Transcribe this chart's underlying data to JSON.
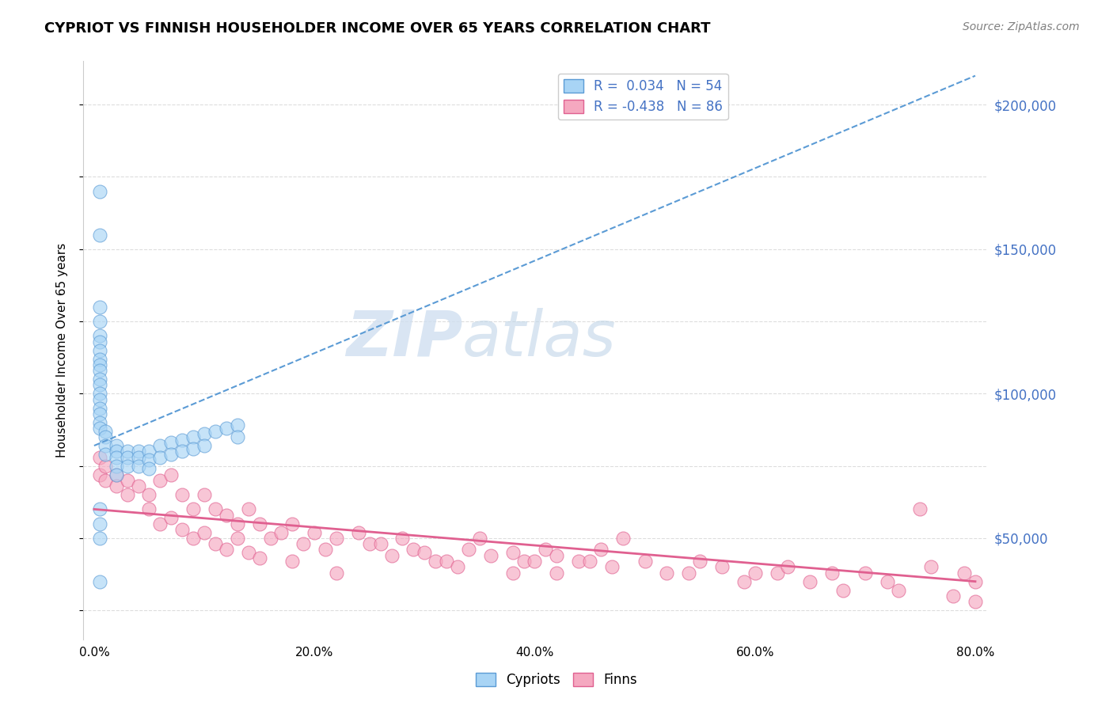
{
  "title": "CYPRIOT VS FINNISH HOUSEHOLDER INCOME OVER 65 YEARS CORRELATION CHART",
  "source": "Source: ZipAtlas.com",
  "ylabel": "Householder Income Over 65 years",
  "xlabel_ticks": [
    "0.0%",
    "20.0%",
    "40.0%",
    "60.0%",
    "80.0%"
  ],
  "xlabel_values": [
    0.0,
    0.2,
    0.4,
    0.6,
    0.8
  ],
  "ytick_labels": [
    "$50,000",
    "$100,000",
    "$150,000",
    "$200,000"
  ],
  "ytick_values": [
    50000,
    100000,
    150000,
    200000
  ],
  "ylim": [
    15000,
    215000
  ],
  "xlim": [
    -0.01,
    0.81
  ],
  "cypriot_R": 0.034,
  "cypriot_N": 54,
  "finn_R": -0.438,
  "finn_N": 86,
  "cypriot_color": "#A8D4F5",
  "finn_color": "#F5A8C0",
  "cypriot_edge_color": "#5B9BD5",
  "finn_edge_color": "#E06090",
  "cypriot_line_color": "#5B9BD5",
  "finn_line_color": "#E06090",
  "background_color": "#FFFFFF",
  "grid_color": "#DDDDDD",
  "watermark_zip": "ZIP",
  "watermark_atlas": "atlas",
  "legend_label_color": "#4472C4",
  "cypriot_x": [
    0.005,
    0.005,
    0.005,
    0.005,
    0.005,
    0.005,
    0.005,
    0.005,
    0.005,
    0.005,
    0.005,
    0.005,
    0.005,
    0.005,
    0.005,
    0.005,
    0.005,
    0.005,
    0.01,
    0.01,
    0.01,
    0.01,
    0.02,
    0.02,
    0.02,
    0.02,
    0.02,
    0.03,
    0.03,
    0.03,
    0.04,
    0.04,
    0.04,
    0.05,
    0.05,
    0.05,
    0.06,
    0.06,
    0.07,
    0.07,
    0.08,
    0.08,
    0.09,
    0.09,
    0.1,
    0.1,
    0.11,
    0.12,
    0.13,
    0.13,
    0.005,
    0.005,
    0.005,
    0.005
  ],
  "cypriot_y": [
    170000,
    155000,
    130000,
    125000,
    120000,
    118000,
    115000,
    112000,
    110000,
    108000,
    105000,
    103000,
    100000,
    98000,
    95000,
    93000,
    90000,
    88000,
    87000,
    85000,
    82000,
    79000,
    82000,
    80000,
    78000,
    75000,
    72000,
    80000,
    78000,
    75000,
    80000,
    78000,
    75000,
    80000,
    77000,
    74000,
    82000,
    78000,
    83000,
    79000,
    84000,
    80000,
    85000,
    81000,
    86000,
    82000,
    87000,
    88000,
    89000,
    85000,
    60000,
    55000,
    50000,
    35000
  ],
  "finn_x": [
    0.005,
    0.005,
    0.01,
    0.01,
    0.02,
    0.02,
    0.03,
    0.03,
    0.04,
    0.05,
    0.05,
    0.06,
    0.06,
    0.07,
    0.07,
    0.08,
    0.08,
    0.09,
    0.09,
    0.1,
    0.1,
    0.11,
    0.11,
    0.12,
    0.12,
    0.13,
    0.13,
    0.14,
    0.14,
    0.15,
    0.15,
    0.16,
    0.17,
    0.18,
    0.18,
    0.19,
    0.2,
    0.21,
    0.22,
    0.22,
    0.24,
    0.25,
    0.26,
    0.27,
    0.28,
    0.29,
    0.3,
    0.31,
    0.32,
    0.33,
    0.34,
    0.35,
    0.36,
    0.38,
    0.38,
    0.39,
    0.4,
    0.41,
    0.42,
    0.42,
    0.44,
    0.45,
    0.46,
    0.47,
    0.48,
    0.5,
    0.52,
    0.54,
    0.55,
    0.57,
    0.59,
    0.6,
    0.62,
    0.63,
    0.65,
    0.67,
    0.68,
    0.7,
    0.72,
    0.73,
    0.75,
    0.76,
    0.78,
    0.79,
    0.8,
    0.8
  ],
  "finn_y": [
    78000,
    72000,
    75000,
    70000,
    72000,
    68000,
    70000,
    65000,
    68000,
    65000,
    60000,
    70000,
    55000,
    72000,
    57000,
    65000,
    53000,
    60000,
    50000,
    65000,
    52000,
    60000,
    48000,
    58000,
    46000,
    55000,
    50000,
    60000,
    45000,
    55000,
    43000,
    50000,
    52000,
    55000,
    42000,
    48000,
    52000,
    46000,
    50000,
    38000,
    52000,
    48000,
    48000,
    44000,
    50000,
    46000,
    45000,
    42000,
    42000,
    40000,
    46000,
    50000,
    44000,
    45000,
    38000,
    42000,
    42000,
    46000,
    38000,
    44000,
    42000,
    42000,
    46000,
    40000,
    50000,
    42000,
    38000,
    38000,
    42000,
    40000,
    35000,
    38000,
    38000,
    40000,
    35000,
    38000,
    32000,
    38000,
    35000,
    32000,
    60000,
    40000,
    30000,
    38000,
    35000,
    28000
  ],
  "cypriot_trend_x": [
    0.0,
    0.8
  ],
  "cypriot_trend_y": [
    82000,
    210000
  ],
  "finn_trend_x": [
    0.0,
    0.8
  ],
  "finn_trend_y": [
    60000,
    35000
  ]
}
